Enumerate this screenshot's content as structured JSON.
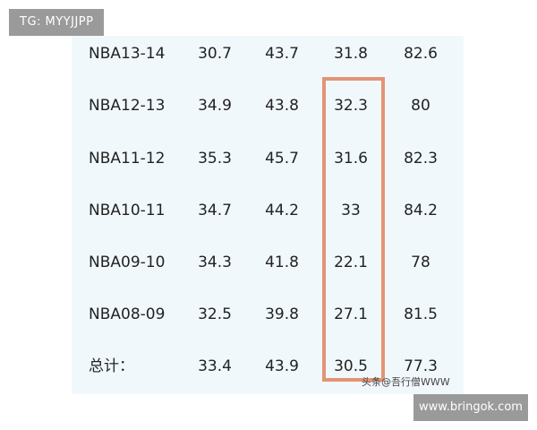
{
  "tags": {
    "top": "TG: MYYJJPP",
    "bottom": "www.bringok.com"
  },
  "watermark": "头条@吾行僧WWW",
  "table": {
    "rows": [
      [
        "NBA13-14",
        "30.7",
        "43.7",
        "31.8",
        "82.6"
      ],
      [
        "NBA12-13",
        "34.9",
        "43.8",
        "32.3",
        "80"
      ],
      [
        "NBA11-12",
        "35.3",
        "45.7",
        "31.6",
        "82.3"
      ],
      [
        "NBA10-11",
        "34.7",
        "44.2",
        "33",
        "84.2"
      ],
      [
        "NBA09-10",
        "34.3",
        "41.8",
        "22.1",
        "78"
      ],
      [
        "NBA08-09",
        "32.5",
        "39.8",
        "27.1",
        "81.5"
      ],
      [
        "总计：",
        "33.4",
        "43.9",
        "30.5",
        "77.3"
      ]
    ]
  },
  "colors": {
    "highlight_border": "#e39475",
    "panel_background": "#f1f8fc",
    "tag_background": "#9a9a9a"
  }
}
